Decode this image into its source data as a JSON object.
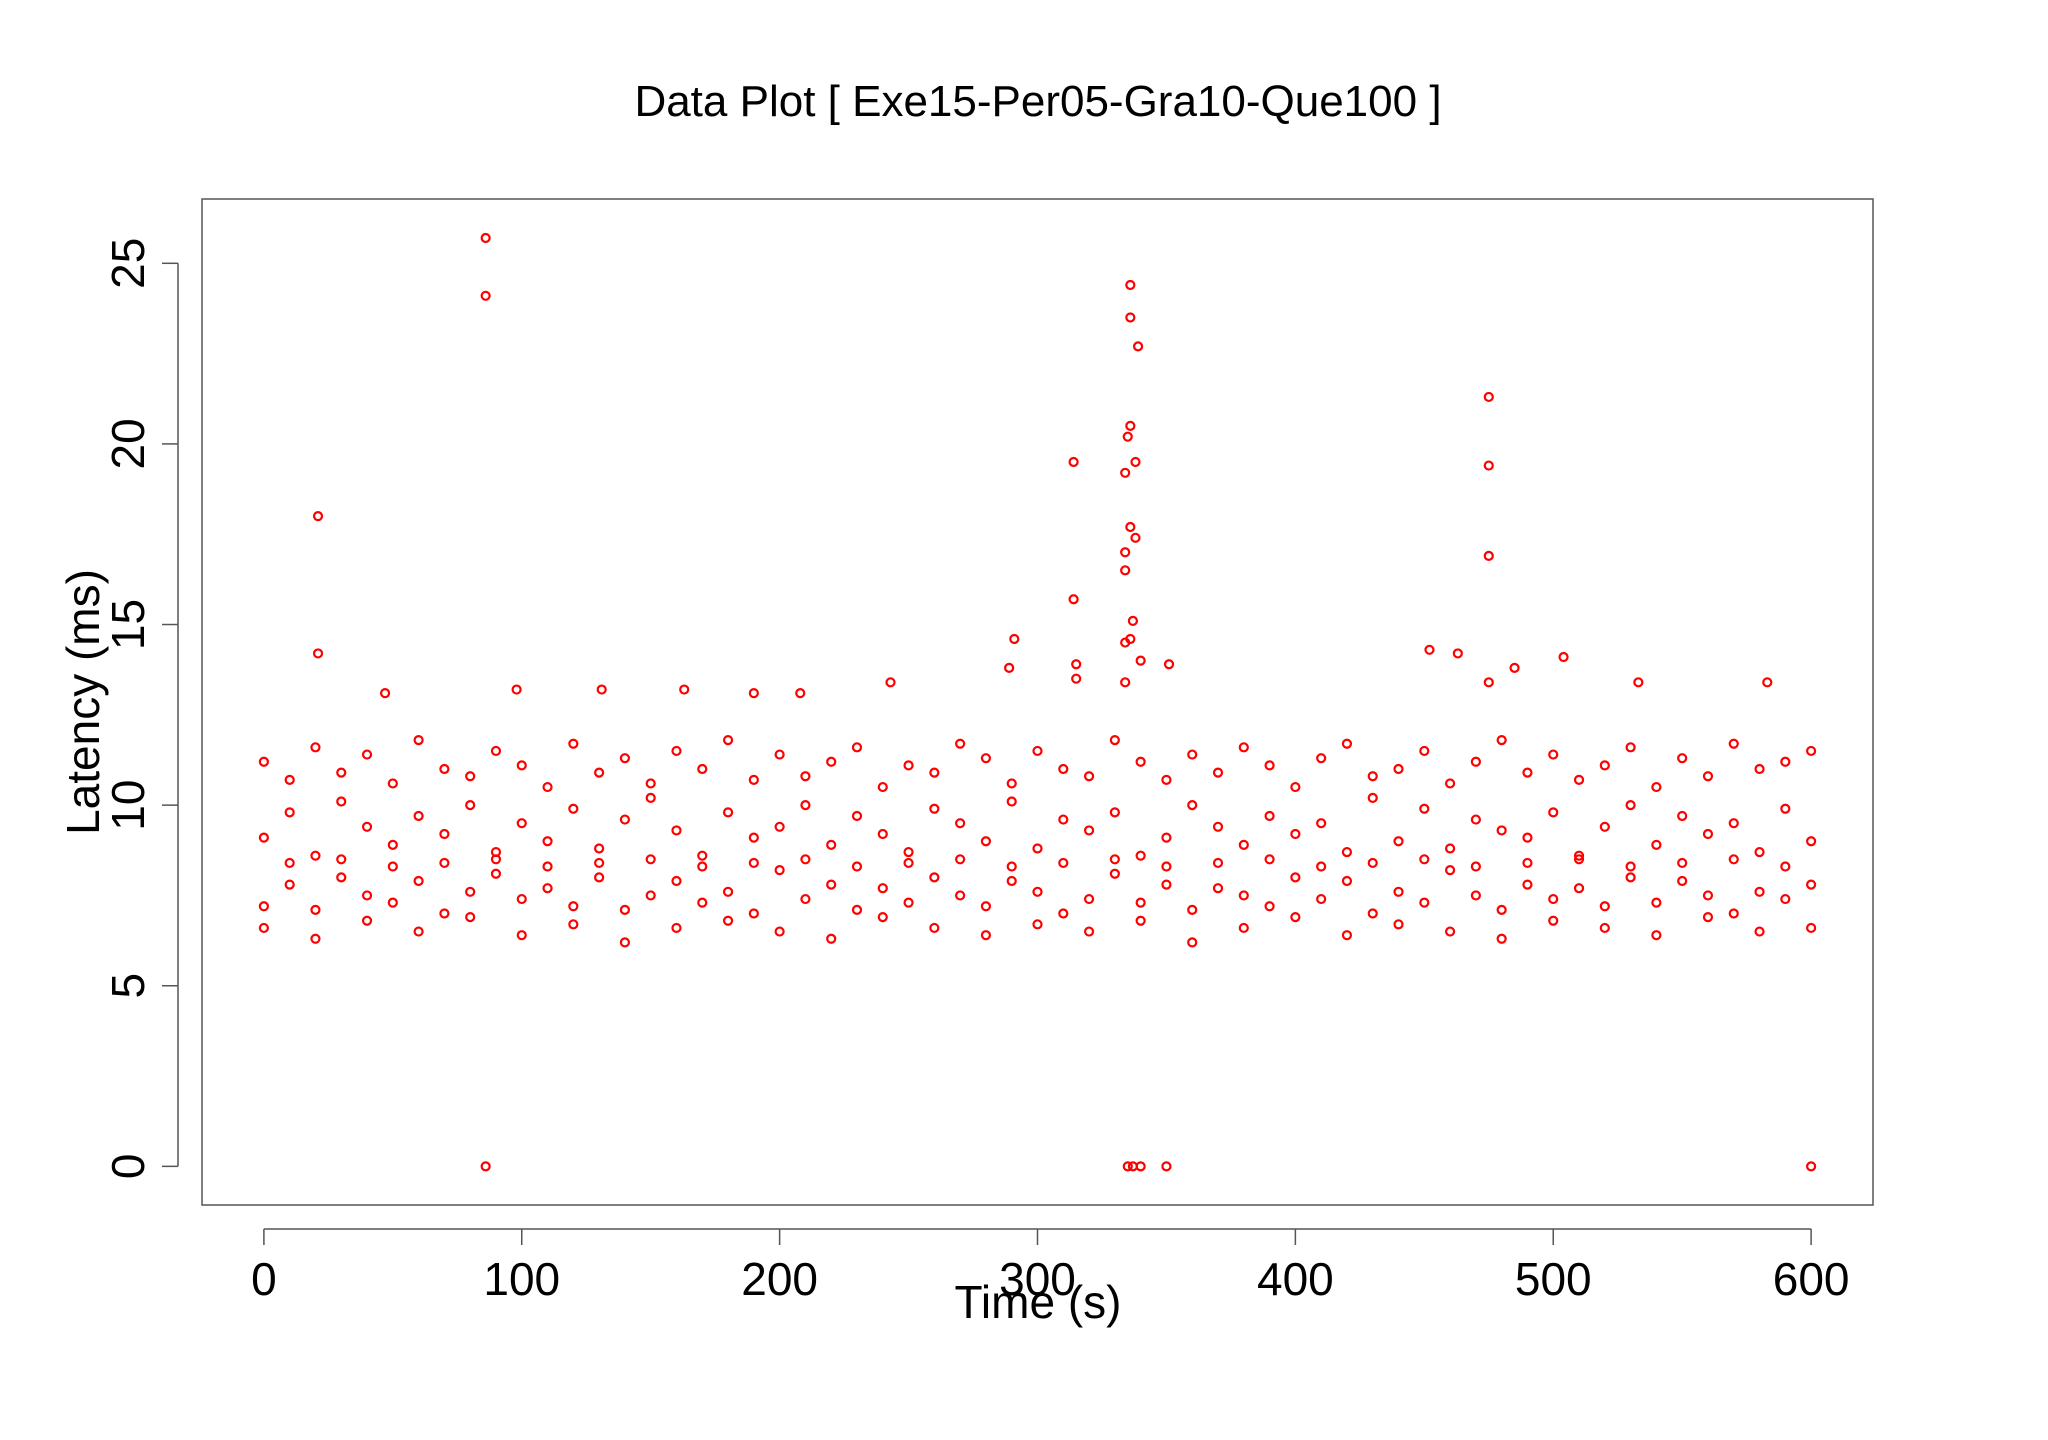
{
  "chart_data": {
    "type": "scatter",
    "title": "Data Plot [ Exe15-Per05-Gra10-Que100 ]",
    "xlabel": "Time (s)",
    "ylabel": "Latency (ms)",
    "color": "#ff0000",
    "xlim": [
      -24,
      624
    ],
    "ylim": [
      -1.07,
      26.78
    ],
    "xticks": [
      0,
      100,
      200,
      300,
      400,
      500,
      600
    ],
    "yticks": [
      0,
      5,
      10,
      15,
      20,
      25
    ],
    "x": [
      0,
      10,
      20,
      30,
      40,
      50,
      60,
      70,
      80,
      90,
      100,
      110,
      120,
      130,
      140,
      150,
      160,
      170,
      180,
      190,
      200,
      210,
      220,
      230,
      240,
      250,
      260,
      270,
      280,
      290,
      300,
      310,
      320,
      330,
      340,
      350,
      360,
      370,
      380,
      390,
      400,
      410,
      420,
      430,
      440,
      450,
      460,
      470,
      480,
      490,
      500,
      510,
      520,
      530,
      540,
      550,
      560,
      570,
      580,
      590,
      600,
      0,
      10,
      20,
      30,
      40,
      50,
      60,
      70,
      80,
      90,
      100,
      110,
      120,
      130,
      140,
      150,
      160,
      170,
      180,
      190,
      200,
      210,
      220,
      230,
      240,
      250,
      260,
      270,
      280,
      290,
      300,
      310,
      320,
      330,
      340,
      350,
      360,
      370,
      380,
      390,
      400,
      410,
      420,
      430,
      440,
      450,
      460,
      470,
      480,
      490,
      500,
      510,
      520,
      530,
      540,
      550,
      560,
      570,
      580,
      590,
      600,
      0,
      10,
      20,
      30,
      40,
      50,
      60,
      70,
      80,
      90,
      100,
      110,
      120,
      130,
      140,
      150,
      160,
      170,
      180,
      190,
      200,
      210,
      220,
      230,
      240,
      250,
      260,
      270,
      280,
      290,
      300,
      310,
      320,
      330,
      340,
      350,
      360,
      370,
      380,
      390,
      400,
      410,
      420,
      430,
      440,
      450,
      460,
      470,
      480,
      490,
      500,
      510,
      520,
      530,
      540,
      550,
      560,
      570,
      580,
      590,
      600,
      0,
      10,
      20,
      30,
      40,
      50,
      60,
      70,
      80,
      90,
      100,
      110,
      120,
      130,
      140,
      150,
      160,
      170,
      180,
      190,
      200,
      210,
      220,
      230,
      240,
      250,
      260,
      270,
      280,
      290,
      300,
      310,
      320,
      330,
      340,
      350,
      360,
      370,
      380,
      390,
      400,
      410,
      420,
      430,
      440,
      450,
      460,
      470,
      480,
      490,
      500,
      510,
      520,
      530,
      540,
      550,
      560,
      570,
      580,
      590,
      600,
      86,
      86,
      21,
      21,
      336,
      336,
      339,
      475,
      475,
      475,
      314,
      336,
      335,
      334,
      338,
      336,
      338,
      334,
      334,
      314,
      337,
      336,
      334,
      291,
      452,
      463,
      504,
      340,
      351,
      315,
      289,
      485,
      315,
      334,
      475,
      533,
      583,
      243,
      131,
      98,
      163,
      208,
      190,
      47,
      86,
      335,
      337,
      340,
      350,
      600
    ],
    "values": [
      7.2,
      7.8,
      7.1,
      8.0,
      7.5,
      7.3,
      7.9,
      7.0,
      7.6,
      8.1,
      7.4,
      7.7,
      7.2,
      8.0,
      7.1,
      7.5,
      7.9,
      7.3,
      7.6,
      7.0,
      8.2,
      7.4,
      7.8,
      7.1,
      7.7,
      7.3,
      8.0,
      7.5,
      7.2,
      7.9,
      7.6,
      7.0,
      7.4,
      8.1,
      7.3,
      7.8,
      7.1,
      7.7,
      7.5,
      7.2,
      8.0,
      7.4,
      7.9,
      7.0,
      7.6,
      7.3,
      8.2,
      7.5,
      7.1,
      7.8,
      7.4,
      7.7,
      7.2,
      8.0,
      7.3,
      7.9,
      7.5,
      7.0,
      7.6,
      7.4,
      7.8,
      9.1,
      9.8,
      8.6,
      10.1,
      9.4,
      8.9,
      9.7,
      9.2,
      10.0,
      8.7,
      9.5,
      9.0,
      9.9,
      8.8,
      9.6,
      10.2,
      9.3,
      8.6,
      9.8,
      9.1,
      9.4,
      10.0,
      8.9,
      9.7,
      9.2,
      8.7,
      9.9,
      9.5,
      9.0,
      10.1,
      8.8,
      9.6,
      9.3,
      9.8,
      8.6,
      9.1,
      10.0,
      9.4,
      8.9,
      9.7,
      9.2,
      9.5,
      8.7,
      10.2,
      9.0,
      9.9,
      8.8,
      9.6,
      9.3,
      9.1,
      9.8,
      8.6,
      9.4,
      10.0,
      8.9,
      9.7,
      9.2,
      9.5,
      8.7,
      9.9,
      9.0,
      11.2,
      10.7,
      11.6,
      10.9,
      11.4,
      10.6,
      11.8,
      11.0,
      10.8,
      11.5,
      11.1,
      10.5,
      11.7,
      10.9,
      11.3,
      10.6,
      11.5,
      11.0,
      11.8,
      10.7,
      11.4,
      10.8,
      11.2,
      11.6,
      10.5,
      11.1,
      10.9,
      11.7,
      11.3,
      10.6,
      11.5,
      11.0,
      10.8,
      11.8,
      11.2,
      10.7,
      11.4,
      10.9,
      11.6,
      11.1,
      10.5,
      11.3,
      11.7,
      10.8,
      11.0,
      11.5,
      10.6,
      11.2,
      11.8,
      10.9,
      11.4,
      10.7,
      11.1,
      11.6,
      10.5,
      11.3,
      10.8,
      11.7,
      11.0,
      11.2,
      11.5,
      6.6,
      8.4,
      6.3,
      8.5,
      6.8,
      8.3,
      6.5,
      8.4,
      6.9,
      8.5,
      6.4,
      8.3,
      6.7,
      8.4,
      6.2,
      8.5,
      6.6,
      8.3,
      6.8,
      8.4,
      6.5,
      8.5,
      6.3,
      8.3,
      6.9,
      8.4,
      6.6,
      8.5,
      6.4,
      8.3,
      6.7,
      8.4,
      6.5,
      8.5,
      6.8,
      8.3,
      6.2,
      8.4,
      6.6,
      8.5,
      6.9,
      8.3,
      6.4,
      8.4,
      6.7,
      8.5,
      6.5,
      8.3,
      6.3,
      8.4,
      6.8,
      8.5,
      6.6,
      8.3,
      6.4,
      8.4,
      6.9,
      8.5,
      6.5,
      8.3,
      6.6,
      25.7,
      24.1,
      18.0,
      14.2,
      24.4,
      23.5,
      22.7,
      21.3,
      19.4,
      16.9,
      19.5,
      20.5,
      20.2,
      19.2,
      19.5,
      17.7,
      17.4,
      17.0,
      16.5,
      15.7,
      15.1,
      14.6,
      14.5,
      14.6,
      14.3,
      14.2,
      14.1,
      14.0,
      13.9,
      13.9,
      13.8,
      13.8,
      13.5,
      13.4,
      13.4,
      13.4,
      13.4,
      13.4,
      13.2,
      13.2,
      13.2,
      13.1,
      13.1,
      13.1,
      0,
      0,
      0,
      0,
      0,
      0
    ]
  }
}
